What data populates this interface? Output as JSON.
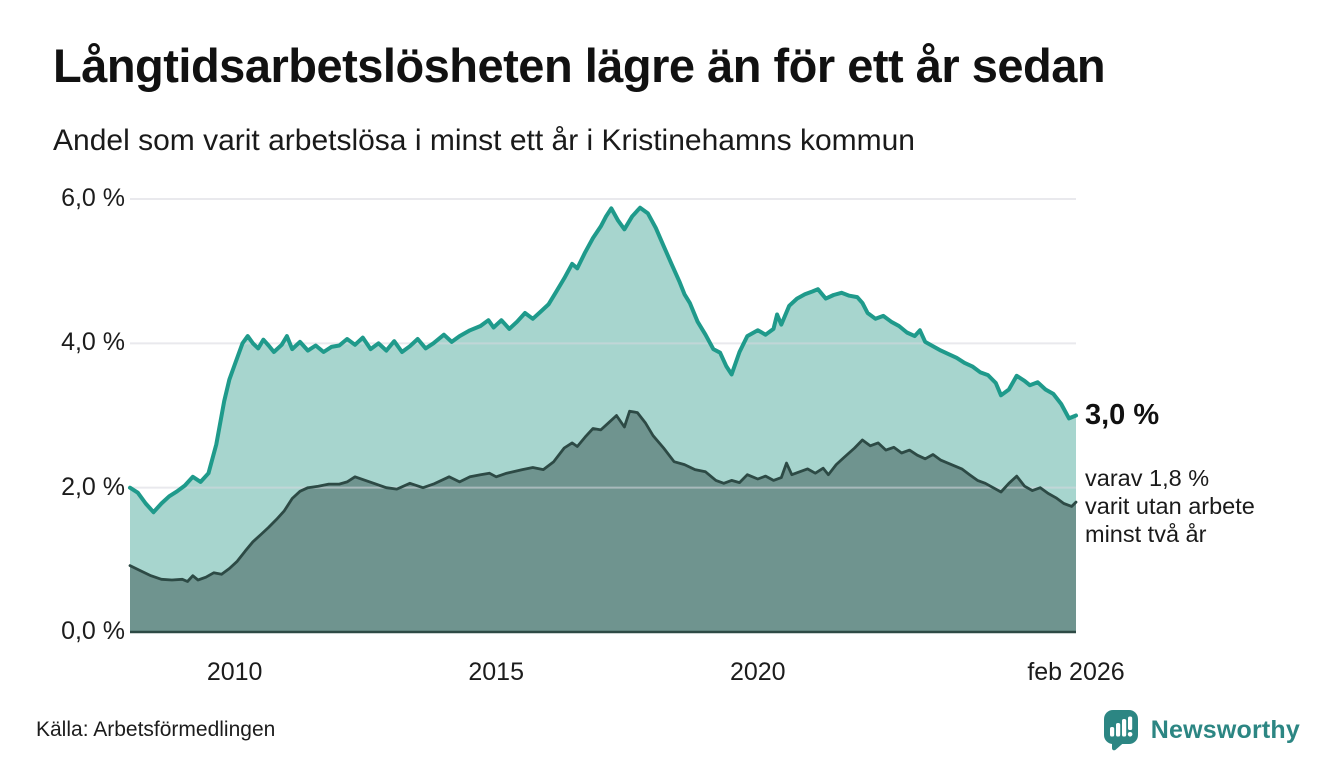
{
  "header": {
    "title": "Långtidsarbetslösheten lägre än för ett år sedan",
    "subtitle": "Andel som varit arbetslösa i minst ett år i Kristinehamns kommun"
  },
  "annotations": {
    "latest_label": "3,0 %",
    "detail_line1": "varav 1,8 %",
    "detail_line2": "varit utan arbete",
    "detail_line3": "minst två år"
  },
  "footer": {
    "source": "Källa: Arbetsförmedlingen",
    "brand_name": "Newsworthy",
    "brand_icon": "newsworthy-speech-bubble-bar-chart-icon",
    "brand_color": "#2c8683"
  },
  "colors": {
    "background": "#ffffff",
    "text": "#161616",
    "grid": "#d8d8e0",
    "baseline": "#2d4a45"
  },
  "chart_data": {
    "type": "area",
    "title": "Långtidsarbetslösheten lägre än för ett år sedan",
    "subtitle": "Andel som varit arbetslösa i minst ett år i Kristinehamns kommun",
    "unit": "%",
    "grid": true,
    "legend_position": "none",
    "x_axis": {
      "range": [
        2008.0,
        2026.083
      ],
      "ticks": [
        {
          "label": "2010",
          "year": 2010
        },
        {
          "label": "2015",
          "year": 2015
        },
        {
          "label": "2020",
          "year": 2020
        },
        {
          "label": "feb 2026",
          "year": 2026.083
        }
      ]
    },
    "y_axis": {
      "range": [
        0,
        6
      ],
      "ticks": [
        {
          "label": "6,0 %",
          "value": 6
        },
        {
          "label": "4,0 %",
          "value": 4
        },
        {
          "label": "2,0 %",
          "value": 2
        },
        {
          "label": "0,0 %",
          "value": 0
        }
      ]
    },
    "grid_color": "#d8d8e0",
    "baseline_color": "#2d4a45",
    "series": [
      {
        "name": "Andel arbetslösa minst ett år",
        "end_value_label": "3,0 %",
        "color": "#1f9a8b",
        "fill": "#a7d5ce",
        "line_width": 4,
        "points": [
          [
            2008.0,
            2.0
          ],
          [
            2008.15,
            1.93
          ],
          [
            2008.3,
            1.78
          ],
          [
            2008.45,
            1.66
          ],
          [
            2008.6,
            1.78
          ],
          [
            2008.75,
            1.88
          ],
          [
            2008.9,
            1.95
          ],
          [
            2009.05,
            2.03
          ],
          [
            2009.2,
            2.15
          ],
          [
            2009.35,
            2.08
          ],
          [
            2009.5,
            2.2
          ],
          [
            2009.65,
            2.6
          ],
          [
            2009.8,
            3.2
          ],
          [
            2009.9,
            3.5
          ],
          [
            2010.0,
            3.7
          ],
          [
            2010.15,
            4.0
          ],
          [
            2010.25,
            4.1
          ],
          [
            2010.35,
            4.0
          ],
          [
            2010.45,
            3.93
          ],
          [
            2010.55,
            4.05
          ],
          [
            2010.65,
            3.97
          ],
          [
            2010.75,
            3.88
          ],
          [
            2010.9,
            3.98
          ],
          [
            2011.0,
            4.1
          ],
          [
            2011.1,
            3.92
          ],
          [
            2011.25,
            4.02
          ],
          [
            2011.4,
            3.9
          ],
          [
            2011.55,
            3.97
          ],
          [
            2011.7,
            3.88
          ],
          [
            2011.85,
            3.95
          ],
          [
            2012.0,
            3.97
          ],
          [
            2012.15,
            4.06
          ],
          [
            2012.3,
            3.98
          ],
          [
            2012.45,
            4.08
          ],
          [
            2012.6,
            3.92
          ],
          [
            2012.75,
            4.0
          ],
          [
            2012.9,
            3.9
          ],
          [
            2013.05,
            4.03
          ],
          [
            2013.2,
            3.88
          ],
          [
            2013.35,
            3.96
          ],
          [
            2013.5,
            4.06
          ],
          [
            2013.65,
            3.93
          ],
          [
            2013.8,
            4.0
          ],
          [
            2014.0,
            4.12
          ],
          [
            2014.15,
            4.02
          ],
          [
            2014.3,
            4.1
          ],
          [
            2014.5,
            4.18
          ],
          [
            2014.7,
            4.24
          ],
          [
            2014.85,
            4.32
          ],
          [
            2014.95,
            4.22
          ],
          [
            2015.1,
            4.32
          ],
          [
            2015.25,
            4.2
          ],
          [
            2015.4,
            4.3
          ],
          [
            2015.55,
            4.42
          ],
          [
            2015.7,
            4.34
          ],
          [
            2015.85,
            4.44
          ],
          [
            2016.0,
            4.54
          ],
          [
            2016.15,
            4.72
          ],
          [
            2016.3,
            4.9
          ],
          [
            2016.45,
            5.1
          ],
          [
            2016.55,
            5.04
          ],
          [
            2016.7,
            5.26
          ],
          [
            2016.85,
            5.46
          ],
          [
            2017.0,
            5.62
          ],
          [
            2017.1,
            5.76
          ],
          [
            2017.2,
            5.87
          ],
          [
            2017.33,
            5.7
          ],
          [
            2017.45,
            5.58
          ],
          [
            2017.6,
            5.76
          ],
          [
            2017.75,
            5.88
          ],
          [
            2017.9,
            5.8
          ],
          [
            2018.05,
            5.6
          ],
          [
            2018.2,
            5.35
          ],
          [
            2018.35,
            5.1
          ],
          [
            2018.5,
            4.86
          ],
          [
            2018.6,
            4.68
          ],
          [
            2018.7,
            4.56
          ],
          [
            2018.85,
            4.3
          ],
          [
            2019.0,
            4.12
          ],
          [
            2019.15,
            3.92
          ],
          [
            2019.28,
            3.87
          ],
          [
            2019.4,
            3.68
          ],
          [
            2019.5,
            3.57
          ],
          [
            2019.65,
            3.88
          ],
          [
            2019.8,
            4.1
          ],
          [
            2020.0,
            4.18
          ],
          [
            2020.15,
            4.12
          ],
          [
            2020.3,
            4.2
          ],
          [
            2020.37,
            4.4
          ],
          [
            2020.45,
            4.26
          ],
          [
            2020.6,
            4.52
          ],
          [
            2020.75,
            4.62
          ],
          [
            2020.9,
            4.68
          ],
          [
            2021.05,
            4.72
          ],
          [
            2021.15,
            4.75
          ],
          [
            2021.3,
            4.62
          ],
          [
            2021.45,
            4.67
          ],
          [
            2021.6,
            4.7
          ],
          [
            2021.75,
            4.66
          ],
          [
            2021.9,
            4.64
          ],
          [
            2022.0,
            4.56
          ],
          [
            2022.1,
            4.42
          ],
          [
            2022.25,
            4.34
          ],
          [
            2022.4,
            4.38
          ],
          [
            2022.55,
            4.3
          ],
          [
            2022.7,
            4.24
          ],
          [
            2022.85,
            4.15
          ],
          [
            2023.0,
            4.1
          ],
          [
            2023.1,
            4.18
          ],
          [
            2023.2,
            4.02
          ],
          [
            2023.35,
            3.96
          ],
          [
            2023.5,
            3.9
          ],
          [
            2023.65,
            3.85
          ],
          [
            2023.8,
            3.8
          ],
          [
            2023.95,
            3.73
          ],
          [
            2024.1,
            3.68
          ],
          [
            2024.25,
            3.6
          ],
          [
            2024.4,
            3.56
          ],
          [
            2024.55,
            3.45
          ],
          [
            2024.65,
            3.28
          ],
          [
            2024.8,
            3.36
          ],
          [
            2024.95,
            3.55
          ],
          [
            2025.1,
            3.48
          ],
          [
            2025.2,
            3.42
          ],
          [
            2025.35,
            3.46
          ],
          [
            2025.5,
            3.36
          ],
          [
            2025.65,
            3.3
          ],
          [
            2025.8,
            3.16
          ],
          [
            2025.95,
            2.96
          ],
          [
            2026.083,
            3.0
          ]
        ]
      },
      {
        "name": "varav arbetslösa minst två år",
        "end_value_label": "1,8 %",
        "color": "#2d4a45",
        "fill": "#6f948f",
        "line_width": 2.8,
        "points": [
          [
            2008.0,
            0.92
          ],
          [
            2008.2,
            0.85
          ],
          [
            2008.4,
            0.78
          ],
          [
            2008.6,
            0.73
          ],
          [
            2008.8,
            0.72
          ],
          [
            2009.0,
            0.73
          ],
          [
            2009.1,
            0.7
          ],
          [
            2009.2,
            0.78
          ],
          [
            2009.3,
            0.72
          ],
          [
            2009.45,
            0.76
          ],
          [
            2009.6,
            0.82
          ],
          [
            2009.75,
            0.8
          ],
          [
            2009.9,
            0.88
          ],
          [
            2010.05,
            0.98
          ],
          [
            2010.2,
            1.12
          ],
          [
            2010.35,
            1.25
          ],
          [
            2010.5,
            1.35
          ],
          [
            2010.65,
            1.45
          ],
          [
            2010.8,
            1.56
          ],
          [
            2010.95,
            1.68
          ],
          [
            2011.1,
            1.85
          ],
          [
            2011.25,
            1.95
          ],
          [
            2011.4,
            2.0
          ],
          [
            2011.6,
            2.02
          ],
          [
            2011.8,
            2.05
          ],
          [
            2012.0,
            2.05
          ],
          [
            2012.15,
            2.08
          ],
          [
            2012.3,
            2.15
          ],
          [
            2012.5,
            2.1
          ],
          [
            2012.7,
            2.05
          ],
          [
            2012.9,
            2.0
          ],
          [
            2013.1,
            1.98
          ],
          [
            2013.35,
            2.06
          ],
          [
            2013.6,
            2.0
          ],
          [
            2013.8,
            2.05
          ],
          [
            2014.1,
            2.15
          ],
          [
            2014.3,
            2.08
          ],
          [
            2014.5,
            2.15
          ],
          [
            2014.7,
            2.18
          ],
          [
            2014.87,
            2.2
          ],
          [
            2015.0,
            2.15
          ],
          [
            2015.2,
            2.2
          ],
          [
            2015.5,
            2.25
          ],
          [
            2015.7,
            2.28
          ],
          [
            2015.9,
            2.25
          ],
          [
            2016.1,
            2.36
          ],
          [
            2016.3,
            2.55
          ],
          [
            2016.45,
            2.62
          ],
          [
            2016.55,
            2.57
          ],
          [
            2016.7,
            2.7
          ],
          [
            2016.85,
            2.82
          ],
          [
            2017.0,
            2.8
          ],
          [
            2017.15,
            2.9
          ],
          [
            2017.3,
            3.0
          ],
          [
            2017.45,
            2.84
          ],
          [
            2017.55,
            3.06
          ],
          [
            2017.7,
            3.04
          ],
          [
            2017.85,
            2.9
          ],
          [
            2018.0,
            2.72
          ],
          [
            2018.2,
            2.55
          ],
          [
            2018.4,
            2.36
          ],
          [
            2018.6,
            2.32
          ],
          [
            2018.8,
            2.25
          ],
          [
            2019.0,
            2.22
          ],
          [
            2019.2,
            2.1
          ],
          [
            2019.35,
            2.06
          ],
          [
            2019.5,
            2.1
          ],
          [
            2019.65,
            2.07
          ],
          [
            2019.8,
            2.18
          ],
          [
            2020.0,
            2.12
          ],
          [
            2020.15,
            2.16
          ],
          [
            2020.3,
            2.1
          ],
          [
            2020.45,
            2.14
          ],
          [
            2020.55,
            2.34
          ],
          [
            2020.65,
            2.18
          ],
          [
            2020.8,
            2.22
          ],
          [
            2020.95,
            2.26
          ],
          [
            2021.1,
            2.2
          ],
          [
            2021.25,
            2.27
          ],
          [
            2021.35,
            2.18
          ],
          [
            2021.5,
            2.32
          ],
          [
            2021.65,
            2.42
          ],
          [
            2021.85,
            2.55
          ],
          [
            2022.0,
            2.66
          ],
          [
            2022.15,
            2.58
          ],
          [
            2022.3,
            2.62
          ],
          [
            2022.45,
            2.52
          ],
          [
            2022.6,
            2.56
          ],
          [
            2022.75,
            2.48
          ],
          [
            2022.9,
            2.52
          ],
          [
            2023.05,
            2.45
          ],
          [
            2023.2,
            2.4
          ],
          [
            2023.35,
            2.46
          ],
          [
            2023.5,
            2.38
          ],
          [
            2023.7,
            2.32
          ],
          [
            2023.9,
            2.26
          ],
          [
            2024.05,
            2.18
          ],
          [
            2024.2,
            2.1
          ],
          [
            2024.35,
            2.06
          ],
          [
            2024.5,
            2.0
          ],
          [
            2024.65,
            1.94
          ],
          [
            2024.8,
            2.06
          ],
          [
            2024.95,
            2.16
          ],
          [
            2025.1,
            2.02
          ],
          [
            2025.25,
            1.96
          ],
          [
            2025.4,
            2.0
          ],
          [
            2025.55,
            1.92
          ],
          [
            2025.7,
            1.86
          ],
          [
            2025.85,
            1.78
          ],
          [
            2026.0,
            1.74
          ],
          [
            2026.083,
            1.8
          ]
        ]
      }
    ]
  }
}
